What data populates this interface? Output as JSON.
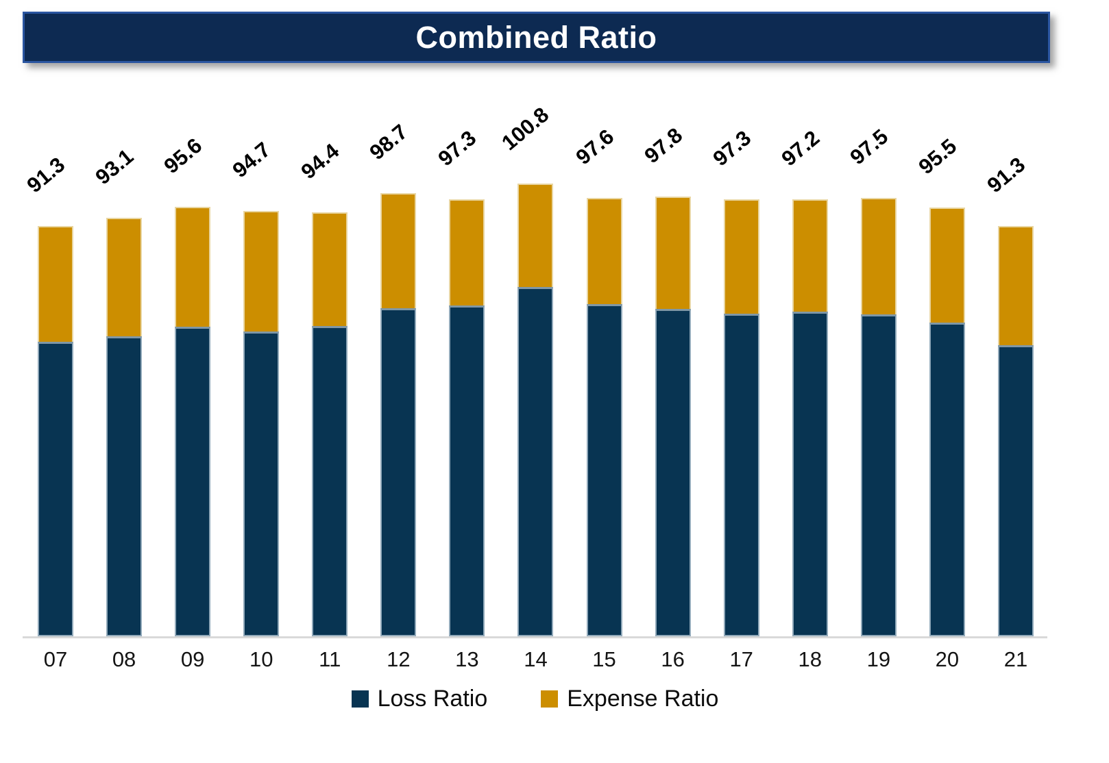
{
  "title": {
    "text": "Combined Ratio"
  },
  "colors": {
    "loss_bar": "#083452",
    "expense_bar": "#cc8e00",
    "title_bg": "#0d2a52",
    "title_border": "#2a55a0",
    "axis_line": "#d9d9d9",
    "data_label_text": "#000000"
  },
  "chart_data": {
    "type": "bar",
    "stacked": true,
    "title": "Combined Ratio",
    "xlabel": "",
    "ylabel": "",
    "ylim": [
      0,
      105
    ],
    "grid": false,
    "legend_position": "bottom",
    "categories": [
      "07",
      "08",
      "09",
      "10",
      "11",
      "12",
      "13",
      "14",
      "15",
      "16",
      "17",
      "18",
      "19",
      "20",
      "21"
    ],
    "series": [
      {
        "name": "Loss Ratio",
        "color": "#083452",
        "values": [
          65.5,
          66.8,
          68.9,
          67.8,
          69.0,
          73.0,
          73.6,
          77.8,
          74.0,
          72.9,
          71.8,
          72.2,
          71.6,
          69.8,
          64.8
        ]
      },
      {
        "name": "Expense Ratio",
        "color": "#cc8e00",
        "values": [
          25.8,
          26.3,
          26.7,
          26.9,
          25.4,
          25.7,
          23.7,
          23.0,
          23.6,
          24.9,
          25.5,
          25.0,
          25.9,
          25.7,
          26.5
        ]
      }
    ],
    "totals": [
      91.3,
      93.1,
      95.6,
      94.7,
      94.4,
      98.7,
      97.3,
      100.8,
      97.6,
      97.8,
      97.3,
      97.2,
      97.5,
      95.5,
      91.3
    ],
    "total_labels": [
      "91.3",
      "93.1",
      "95.6",
      "94.7",
      "94.4",
      "98.7",
      "97.3",
      "100.8",
      "97.6",
      "97.8",
      "97.3",
      "97.2",
      "97.5",
      "95.5",
      "91.3"
    ]
  }
}
